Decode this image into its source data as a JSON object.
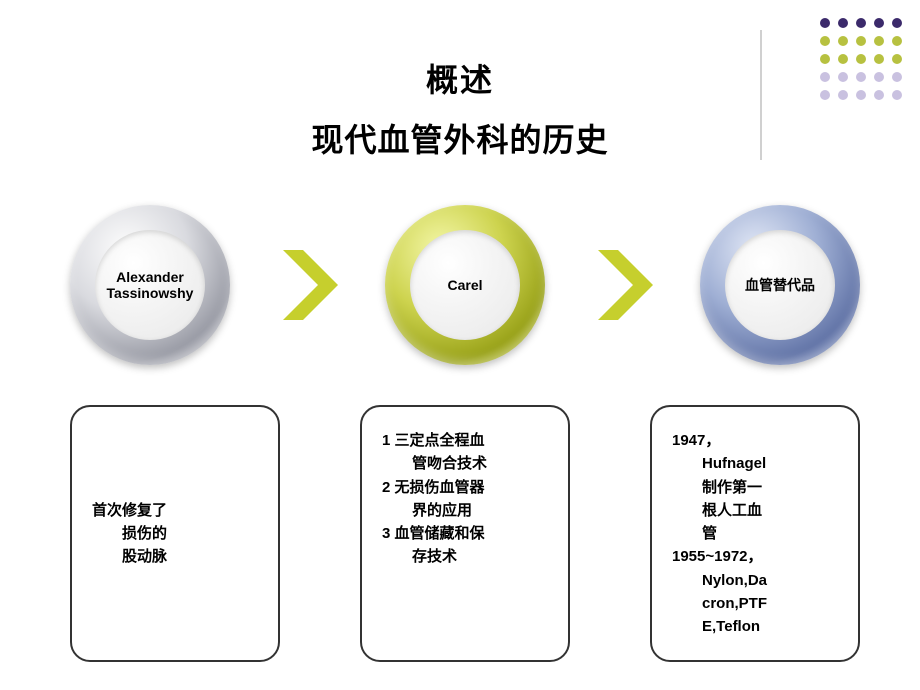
{
  "decorationDots": {
    "rows": 5,
    "cols": 5,
    "colors": [
      [
        "#3b2a6b",
        "#3b2a6b",
        "#3b2a6b",
        "#3b2a6b",
        "#3b2a6b"
      ],
      [
        "#b7c140",
        "#b7c140",
        "#b7c140",
        "#b7c140",
        "#b7c140"
      ],
      [
        "#b7c140",
        "#b7c140",
        "#b7c140",
        "#b7c140",
        "#b7c140"
      ],
      [
        "#c9c1e0",
        "#c9c1e0",
        "#c9c1e0",
        "#c9c1e0",
        "#c9c1e0"
      ],
      [
        "#c9c1e0",
        "#c9c1e0",
        "#c9c1e0",
        "#c9c1e0",
        "#c9c1e0"
      ]
    ]
  },
  "titles": {
    "line1": "概述",
    "line2": "现代血管外科的历史"
  },
  "nodes": [
    {
      "label": "Alexander Tassinowshy",
      "ringStyle": "silver"
    },
    {
      "label": "Carel",
      "ringStyle": "olive"
    },
    {
      "label": "血管替代品",
      "ringStyle": "blue"
    }
  ],
  "chevronColor": "#c6cf2d",
  "boxes": [
    {
      "text": "首次修复了\n　　损伤的\n　　股动脉",
      "align": "center"
    },
    {
      "text": "1  三定点全程血\n　　管吻合技术\n2  无损伤血管器\n　　界的应用\n3  血管储藏和保\n　　存技术",
      "align": "top"
    },
    {
      "text": "1947，\n　　Hufnagel\n　　制作第一\n　　根人工血\n　　管\n1955~1972，\n　　Nylon,Da\n　　cron,PTF\n　　E,Teflon",
      "align": "top"
    }
  ],
  "styling": {
    "background": "#ffffff",
    "titleFontSize": 32,
    "titleColor": "#000000",
    "circleOuterDiameter": 160,
    "circleInnerDiameter": 110,
    "boxBorderColor": "#333333",
    "boxBorderRadius": 20,
    "boxFontSize": 15,
    "dividerColor": "#d0d0d0"
  }
}
